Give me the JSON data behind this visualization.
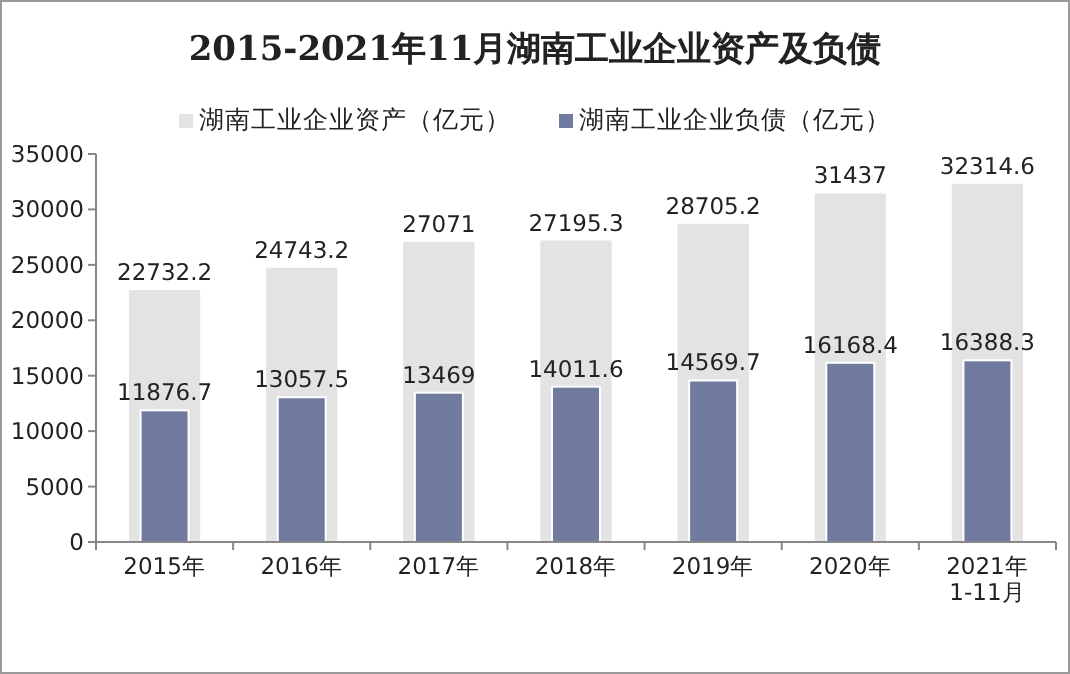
{
  "chart_data": {
    "type": "bar",
    "title": "2015-2021年11月湖南工业企业资产及负债",
    "categories": [
      "2015年",
      "2016年",
      "2017年",
      "2018年",
      "2019年",
      "2020年",
      "2021年1-11月"
    ],
    "series": [
      {
        "name": "湖南工业企业资产（亿元）",
        "color": "#e3e3e3",
        "values": [
          22732.2,
          24743.2,
          27071,
          27195.3,
          28705.2,
          31437,
          32314.6
        ]
      },
      {
        "name": "湖南工业企业负债（亿元）",
        "color": "#717ba0",
        "values": [
          11876.7,
          13057.5,
          13469,
          14011.6,
          14569.7,
          16168.4,
          16388.3
        ]
      }
    ],
    "ylim": [
      0,
      35000
    ],
    "yticks": [
      0,
      5000,
      10000,
      15000,
      20000,
      25000,
      30000,
      35000
    ],
    "data_labels": true,
    "legend": "top",
    "grid": false
  }
}
